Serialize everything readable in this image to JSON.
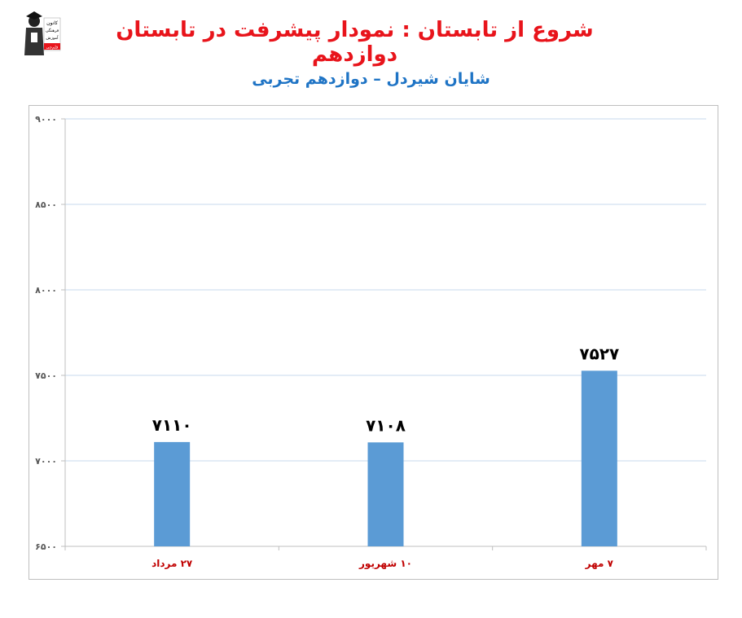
{
  "header": {
    "title": "شروع از تابستان : نمودار پیشرفت در تابستان دوازدهم",
    "subtitle": "شایان شیردل – دوازدهم تجربی"
  },
  "logo": {
    "icon": "graduate-logo-icon",
    "lines": [
      "کانون",
      "فرهنگی",
      "آموزش",
      "قلم‌چی"
    ]
  },
  "colors": {
    "title": "#e8141b",
    "subtitle": "#1f74c5",
    "bar": "#5b9bd5",
    "gridline": "#c7d9ec",
    "tick_label": "#595959",
    "category_label": "#c00000",
    "data_label": "#000000"
  },
  "chart_data": {
    "type": "bar",
    "categories": [
      "۲۷ مرداد",
      "۱۰ شهریور",
      "۷ مهر"
    ],
    "values": [
      7110,
      7108,
      7527
    ],
    "data_labels": [
      "۷۱۱۰",
      "۷۱۰۸",
      "۷۵۲۷"
    ],
    "ylim": [
      6500,
      9000
    ],
    "yticks": [
      6500,
      7000,
      7500,
      8000,
      8500,
      9000
    ],
    "ytick_labels": [
      "۶۵۰۰",
      "۷۰۰۰",
      "۷۵۰۰",
      "۸۰۰۰",
      "۸۵۰۰",
      "۹۰۰۰"
    ],
    "grid": true,
    "legend": "none"
  }
}
